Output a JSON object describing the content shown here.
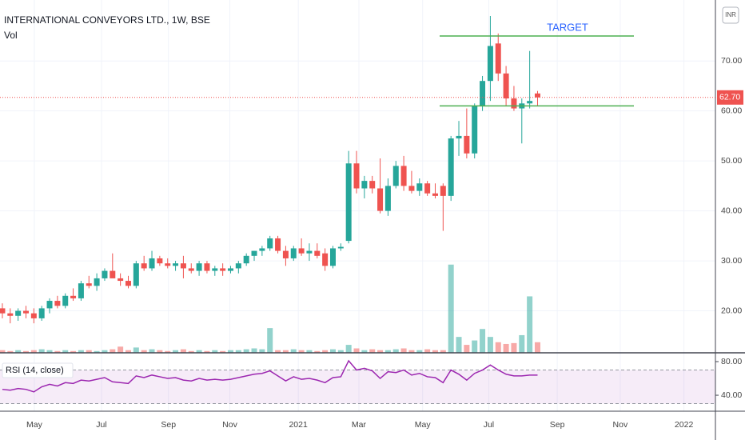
{
  "chart_data": {
    "type": "candlestick",
    "title": "INTERNATIONAL CONVEYORS LTD., 1W, BSE",
    "volume_label": "Vol",
    "currency": "INR",
    "categories": [
      null,
      null,
      null,
      null,
      null,
      null,
      null,
      null,
      null,
      null,
      null,
      null,
      null,
      null,
      null,
      null,
      null,
      null,
      null,
      null,
      null,
      null,
      null,
      null,
      null,
      null,
      null,
      null,
      null,
      null,
      null,
      null,
      null,
      null,
      null,
      null,
      null,
      null,
      null,
      null,
      null,
      null,
      null,
      null,
      null,
      null,
      null,
      null,
      null,
      null,
      null,
      null,
      null,
      null,
      null,
      null,
      null,
      null,
      null,
      null,
      null,
      null,
      null,
      null,
      null,
      null,
      null,
      null,
      null
    ],
    "open": [
      20.5,
      19.5,
      19.0,
      20.0,
      19.5,
      18.5,
      20.5,
      22.0,
      21.0,
      23.0,
      22.5,
      25.5,
      25.0,
      26.5,
      28.0,
      26.5,
      26.0,
      25.0,
      29.5,
      28.5,
      30.5,
      29.5,
      29.0,
      29.5,
      28.5,
      28.0,
      29.5,
      28.0,
      28.5,
      28.0,
      28.5,
      29.5,
      31.0,
      32.0,
      32.5,
      34.5,
      32.0,
      30.5,
      32.5,
      31.5,
      32.0,
      31.5,
      29.0,
      32.5,
      34.0,
      49.5,
      44.5,
      46.0,
      44.5,
      40.0,
      45.0,
      49.0,
      45.0,
      44.0,
      45.5,
      43.5,
      45.0,
      43.0,
      54.5,
      55.0,
      51.5,
      61.0,
      66.0,
      73.5,
      67.5,
      62.5,
      60.5,
      61.5,
      63.5
    ],
    "high": [
      21.5,
      20.5,
      20.5,
      21.0,
      20.5,
      21.0,
      22.5,
      23.0,
      23.5,
      24.5,
      26.0,
      27.0,
      27.5,
      28.5,
      31.5,
      27.5,
      27.0,
      30.0,
      31.0,
      32.0,
      31.0,
      30.5,
      30.0,
      31.0,
      29.5,
      30.0,
      30.0,
      29.0,
      29.5,
      29.0,
      30.0,
      31.5,
      32.0,
      33.0,
      35.0,
      35.0,
      33.0,
      33.0,
      34.5,
      33.5,
      33.5,
      32.5,
      33.0,
      33.5,
      52.0,
      52.0,
      47.0,
      47.0,
      50.5,
      46.5,
      50.0,
      51.0,
      48.0,
      46.5,
      46.0,
      45.5,
      45.5,
      55.0,
      58.0,
      60.5,
      61.5,
      67.0,
      79.0,
      75.5,
      69.0,
      65.0,
      62.5,
      72.0,
      64.0
    ],
    "low": [
      18.5,
      17.5,
      18.0,
      18.5,
      17.5,
      18.0,
      19.5,
      20.5,
      20.5,
      22.0,
      22.0,
      24.5,
      24.0,
      26.0,
      27.0,
      25.0,
      24.5,
      24.5,
      28.0,
      28.0,
      29.0,
      28.5,
      28.0,
      26.5,
      27.5,
      27.0,
      27.5,
      27.0,
      27.0,
      27.5,
      27.5,
      29.0,
      30.0,
      31.0,
      32.0,
      31.5,
      29.0,
      30.0,
      31.0,
      30.0,
      30.5,
      28.0,
      28.5,
      32.0,
      33.5,
      43.5,
      42.5,
      43.5,
      39.5,
      39.0,
      44.5,
      44.0,
      43.5,
      43.0,
      43.0,
      42.5,
      36.0,
      42.0,
      51.0,
      50.5,
      50.5,
      60.0,
      62.0,
      66.0,
      61.0,
      60.0,
      53.5,
      60.5,
      61.0
    ],
    "close": [
      19.5,
      19.0,
      20.0,
      19.5,
      18.5,
      20.5,
      22.0,
      21.0,
      23.0,
      22.5,
      25.5,
      25.0,
      26.5,
      28.0,
      26.5,
      26.0,
      25.0,
      29.5,
      28.5,
      30.5,
      29.5,
      29.0,
      29.5,
      28.5,
      28.0,
      29.5,
      28.0,
      28.5,
      28.0,
      28.5,
      29.5,
      31.0,
      32.0,
      32.5,
      34.5,
      32.0,
      30.5,
      32.5,
      31.5,
      32.0,
      31.0,
      29.0,
      32.5,
      32.8,
      49.5,
      44.5,
      46.0,
      44.5,
      40.0,
      45.0,
      49.0,
      45.0,
      44.0,
      45.5,
      43.5,
      43.0,
      43.0,
      54.5,
      55.0,
      51.5,
      61.0,
      66.0,
      73.0,
      67.5,
      62.5,
      60.5,
      61.5,
      62.0,
      62.7
    ],
    "volume": [
      3,
      2,
      3,
      2,
      3,
      4,
      3,
      2,
      3,
      2,
      3,
      3,
      2,
      3,
      4,
      7,
      3,
      6,
      3,
      4,
      3,
      2,
      3,
      4,
      2,
      3,
      2,
      3,
      2,
      3,
      3,
      4,
      5,
      4,
      28,
      3,
      3,
      4,
      3,
      3,
      2,
      3,
      4,
      3,
      9,
      5,
      3,
      4,
      3,
      3,
      4,
      5,
      3,
      3,
      4,
      3,
      3,
      100,
      18,
      9,
      14,
      27,
      18,
      12,
      10,
      11,
      20,
      64,
      12
    ],
    "volume_lim": [
      0,
      400
    ],
    "rsi_label": "RSI (14, close)",
    "rsi": [
      47,
      46,
      48,
      47,
      44,
      50,
      53,
      51,
      55,
      54,
      58,
      57,
      59,
      61,
      56,
      55,
      54,
      63,
      61,
      64,
      62,
      60,
      61,
      58,
      57,
      60,
      58,
      59,
      58,
      59,
      61,
      63,
      65,
      66,
      69,
      63,
      57,
      62,
      59,
      60,
      58,
      55,
      61,
      62,
      81,
      70,
      72,
      69,
      60,
      68,
      67,
      70,
      64,
      66,
      62,
      61,
      55,
      70,
      65,
      58,
      66,
      70,
      76,
      70,
      65,
      63,
      63,
      64,
      64
    ],
    "rsi_color": "#9c27b0",
    "rsi_lim": [
      21,
      90.5
    ],
    "rsi_band": [
      30,
      70
    ],
    "rsi_ticks": [
      {
        "value": 80,
        "label": "80.00"
      },
      {
        "value": 40,
        "label": "40.00"
      }
    ],
    "ylim": [
      11.6,
      82.2
    ],
    "yticks": [
      {
        "value": 20,
        "label": "20.00"
      },
      {
        "value": 30,
        "label": "30.00"
      },
      {
        "value": 40,
        "label": "40.00"
      },
      {
        "value": 50,
        "label": "50.00"
      },
      {
        "value": 60,
        "label": "60.00"
      },
      {
        "value": 70,
        "label": "70.00"
      }
    ],
    "xlim": [
      -0.3,
      90.6
    ],
    "xticks": [
      {
        "value": 4.06,
        "label": "May"
      },
      {
        "value": 12.6,
        "label": "Jul"
      },
      {
        "value": 21.1,
        "label": "Sep"
      },
      {
        "value": 28.9,
        "label": "Nov"
      },
      {
        "value": 37.6,
        "label": "2021"
      },
      {
        "value": 45.3,
        "label": "Mar"
      },
      {
        "value": 53.4,
        "label": "May"
      },
      {
        "value": 61.8,
        "label": "Jul"
      },
      {
        "value": 70.5,
        "label": "Sep"
      },
      {
        "value": 78.5,
        "label": "Nov"
      },
      {
        "value": 86.6,
        "label": "2022"
      }
    ],
    "last_price": {
      "value": 62.7,
      "label": "62.70"
    },
    "levels": [
      75,
      61
    ],
    "level_color": "#4caf50",
    "annotation": "TARGET",
    "up_color": "#26a69a",
    "down_color": "#ef5350",
    "grid": true
  }
}
